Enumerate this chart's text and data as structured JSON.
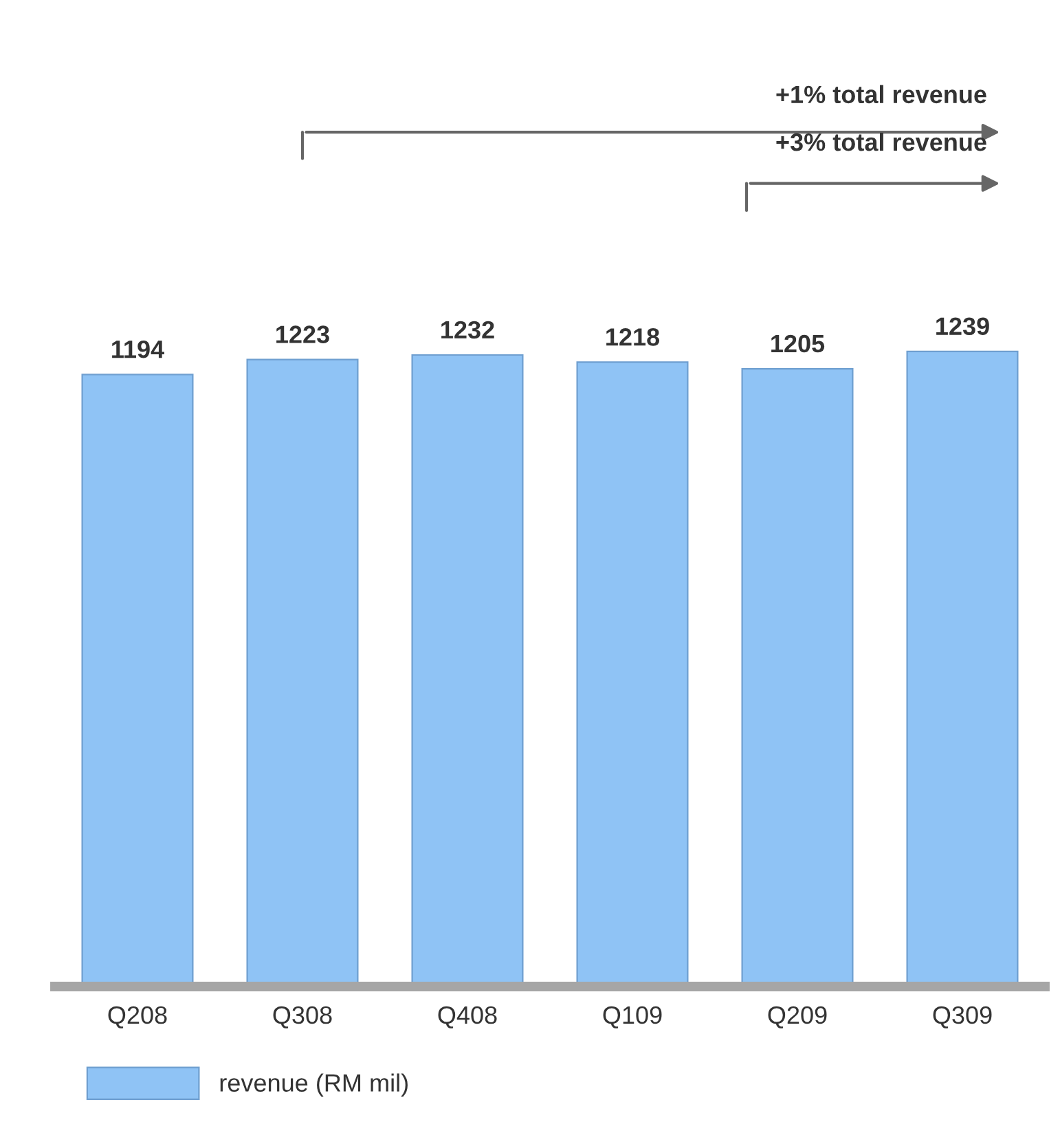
{
  "chart_data": {
    "type": "bar",
    "categories": [
      "Q208",
      "Q308",
      "Q408",
      "Q109",
      "Q209",
      "Q309"
    ],
    "series": [
      {
        "name": "revenue (RM mil)",
        "color": "#8fc3f5",
        "values": [
          1194,
          1223,
          1232,
          1218,
          1205,
          1239
        ]
      }
    ],
    "data_labels": true,
    "grid": false,
    "legend": "bottom left",
    "annotations": [
      "+1% total revenue",
      "+3% total revenue"
    ]
  }
}
